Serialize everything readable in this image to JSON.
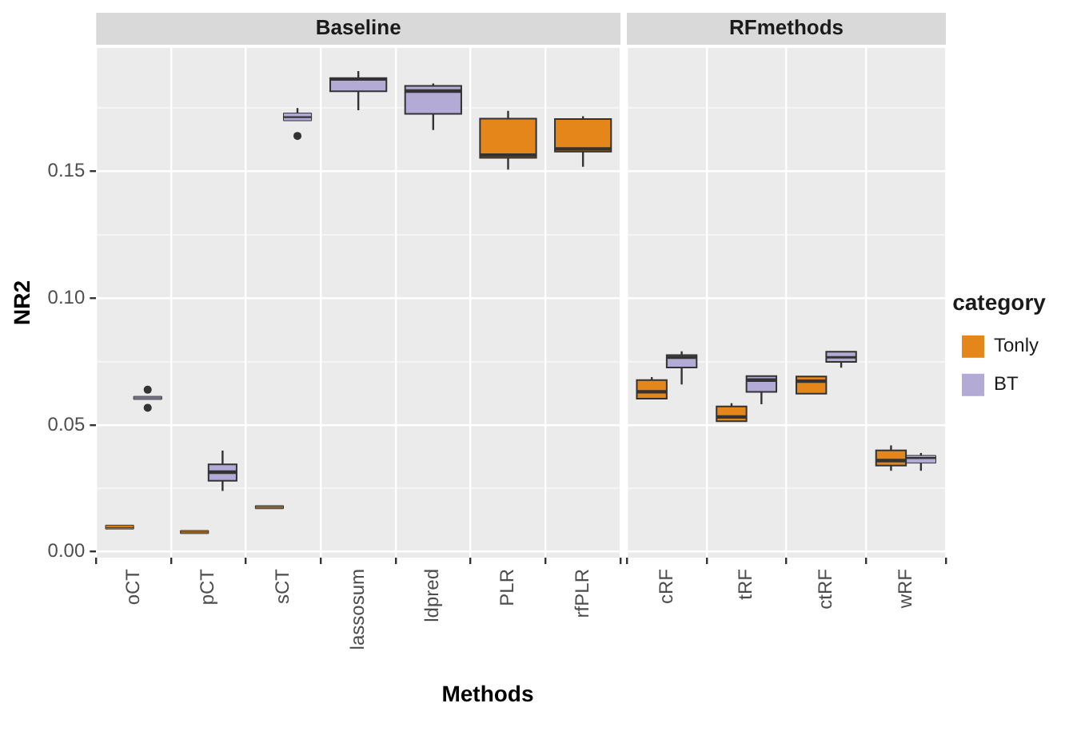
{
  "chart_data": [
    {
      "type": "box",
      "title": "Baseline",
      "xlabel": "Methods",
      "ylabel": "NR2",
      "categories": [
        "oCT",
        "pCT",
        "sCT",
        "lassosum",
        "ldpred",
        "PLR",
        "rfPLR"
      ],
      "ylim": [
        -0.0023,
        0.1987
      ],
      "yticks": [
        {
          "value": 0,
          "label": "0.00"
        },
        {
          "value": 0.025,
          "label": null
        },
        {
          "value": 0.05,
          "label": "0.05"
        },
        {
          "value": 0.075,
          "label": null
        },
        {
          "value": 0.1,
          "label": "0.10"
        },
        {
          "value": 0.125,
          "label": null
        },
        {
          "value": 0.15,
          "label": "0.15"
        },
        {
          "value": 0.175,
          "label": null
        }
      ],
      "grid": true,
      "series": [
        {
          "color": "#e5861a",
          "boxes": [
            {
              "low": 0.0088,
              "q1": 0.009,
              "median": 0.0096,
              "q3": 0.0105,
              "high": 0.011
            },
            {
              "low": 0.0068,
              "q1": 0.0072,
              "median": 0.0078,
              "q3": 0.0084,
              "high": 0.0088
            },
            {
              "low": 0.0165,
              "q1": 0.017,
              "median": 0.0176,
              "q3": 0.0182,
              "high": 0.0185
            },
            null,
            null,
            {
              "low": 0.1507,
              "q1": 0.1554,
              "median": 0.1564,
              "q3": 0.1708,
              "high": 0.1739
            },
            {
              "low": 0.1518,
              "q1": 0.1578,
              "median": 0.1589,
              "q3": 0.1707,
              "high": 0.1718
            }
          ]
        },
        {
          "color": "#b3aad5",
          "boxes": [
            {
              "low": 0.0598,
              "q1": 0.0601,
              "median": 0.0607,
              "q3": 0.0613,
              "high": 0.0616,
              "outliers": [
                0.0639,
                0.0568
              ]
            },
            {
              "low": 0.024,
              "q1": 0.028,
              "median": 0.0314,
              "q3": 0.0345,
              "high": 0.0399
            },
            {
              "low": 0.17,
              "q1": 0.17,
              "median": 0.1714,
              "q3": 0.173,
              "high": 0.175,
              "outliers": [
                0.164
              ]
            },
            {
              "low": 0.1741,
              "q1": 0.1816,
              "median": 0.1864,
              "q3": 0.1868,
              "high": 0.1896
            },
            {
              "low": 0.1663,
              "q1": 0.1727,
              "median": 0.1817,
              "q3": 0.1837,
              "high": 0.1847
            },
            null,
            null
          ]
        }
      ]
    },
    {
      "type": "box",
      "title": "RFmethods",
      "categories": [
        "cRF",
        "tRF",
        "ctRF",
        "wRF"
      ],
      "ylim": [
        -0.0023,
        0.1987
      ],
      "yticks": [
        0,
        {
          "value": 0.025,
          "label": null
        },
        0.05,
        {
          "value": 0.075,
          "label": null
        },
        0.1,
        {
          "value": 0.125,
          "label": null
        },
        0.15,
        {
          "value": 0.175,
          "label": null
        }
      ],
      "grid": true,
      "tick_labels": "x",
      "legend": "right",
      "legend_title": "category",
      "series": [
        {
          "name": "Tonly",
          "color": "#e5861a",
          "boxes": [
            {
              "low": 0.0597,
              "q1": 0.0604,
              "median": 0.0631,
              "q3": 0.0677,
              "high": 0.0689
            },
            {
              "low": 0.0508,
              "q1": 0.0515,
              "median": 0.0532,
              "q3": 0.0573,
              "high": 0.0586
            },
            {
              "low": 0.0615,
              "q1": 0.0624,
              "median": 0.0673,
              "q3": 0.0691,
              "high": 0.0696
            },
            {
              "low": 0.032,
              "q1": 0.034,
              "median": 0.036,
              "q3": 0.04,
              "high": 0.042
            }
          ]
        },
        {
          "name": "BT",
          "color": "#b3aad5",
          "boxes": [
            {
              "low": 0.066,
              "q1": 0.0727,
              "median": 0.0767,
              "q3": 0.0776,
              "high": 0.0791
            },
            {
              "low": 0.0582,
              "q1": 0.0631,
              "median": 0.0677,
              "q3": 0.0693,
              "high": 0.0699
            },
            {
              "low": 0.0726,
              "q1": 0.0749,
              "median": 0.0767,
              "q3": 0.0789,
              "high": 0.0797
            },
            {
              "low": 0.032,
              "q1": 0.035,
              "median": 0.037,
              "q3": 0.038,
              "high": 0.039
            }
          ]
        }
      ]
    }
  ]
}
